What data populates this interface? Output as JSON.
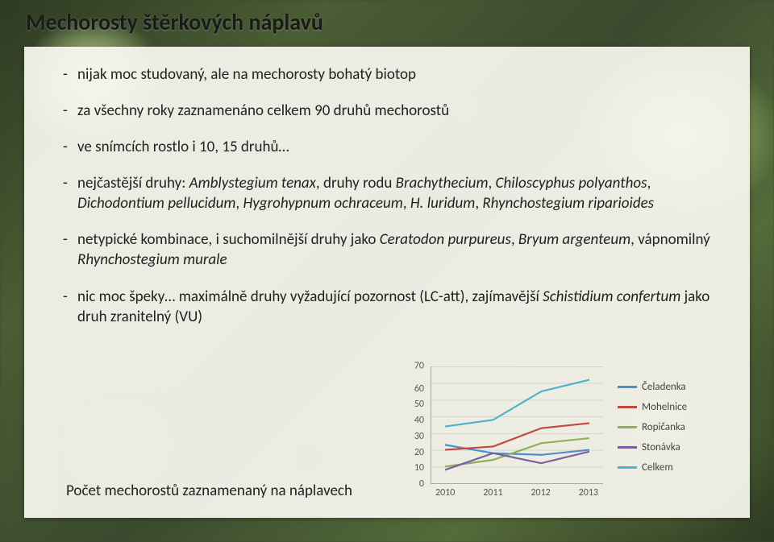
{
  "title": "Mechorosty štěrkových náplavů",
  "bullets": [
    {
      "text": "nijak moc studovaný, ale na mechorosty bohatý biotop"
    },
    {
      "text": "za všechny roky zaznamenáno celkem 90 druhů mechorostů"
    },
    {
      "text": "ve snímcích rostlo i 10, 15 druhů…"
    },
    {
      "html": "nejčastější druhy: <span class=\"ital\">Amblystegium tenax</span>, druhy rodu <span class=\"ital\">Brachythecium</span>, <span class=\"ital\">Chiloscyphus polyanthos</span>, <span class=\"ital\">Dichodontium pellucidum</span>, <span class=\"ital\">Hygrohypnum ochraceum</span>, <span class=\"ital\">H. luridum</span>, <span class=\"ital\">Rhynchostegium riparioides</span>"
    },
    {
      "html": "netypické kombinace, i suchomilnější druhy jako <span class=\"ital\">Ceratodon purpureus</span>, <span class=\"ital\">Bryum argenteum</span>, vápnomilný <span class=\"ital\">Rhynchostegium murale</span>"
    },
    {
      "html": "nic moc špeky… maximálně druhy vyžadující pozornost (LC-att), zajímavější <span class=\"ital\">Schistidium confertum</span> jako druh zranitelný (VU)",
      "last": true
    }
  ],
  "caption": "Počet mechorostů zaznamenaný na náplavech",
  "chart": {
    "type": "line",
    "ylim": [
      0,
      70
    ],
    "ytick_step": 10,
    "yticks": [
      70,
      60,
      50,
      40,
      30,
      20,
      10,
      0
    ],
    "xlabels": [
      "2010",
      "2011",
      "2012",
      "2013"
    ],
    "grid_color": "#d8d5cd",
    "axis_color": "#a9a9a9",
    "background_color": "transparent",
    "label_fontsize": 12,
    "line_width": 2.2,
    "series": [
      {
        "name": "Čeladenka",
        "color": "#4a8fd0",
        "values": [
          23,
          18,
          17,
          20
        ]
      },
      {
        "name": "Mohelnice",
        "color": "#c04a3e",
        "values": [
          20,
          22,
          33,
          36
        ]
      },
      {
        "name": "Ropičanka",
        "color": "#8fb05a",
        "values": [
          10,
          14,
          24,
          27
        ]
      },
      {
        "name": "Stonávka",
        "color": "#7a5fa0",
        "values": [
          8,
          18,
          12,
          19
        ]
      },
      {
        "name": "Celkem",
        "color": "#4fb3c9",
        "values": [
          34,
          38,
          55,
          62
        ]
      }
    ]
  }
}
